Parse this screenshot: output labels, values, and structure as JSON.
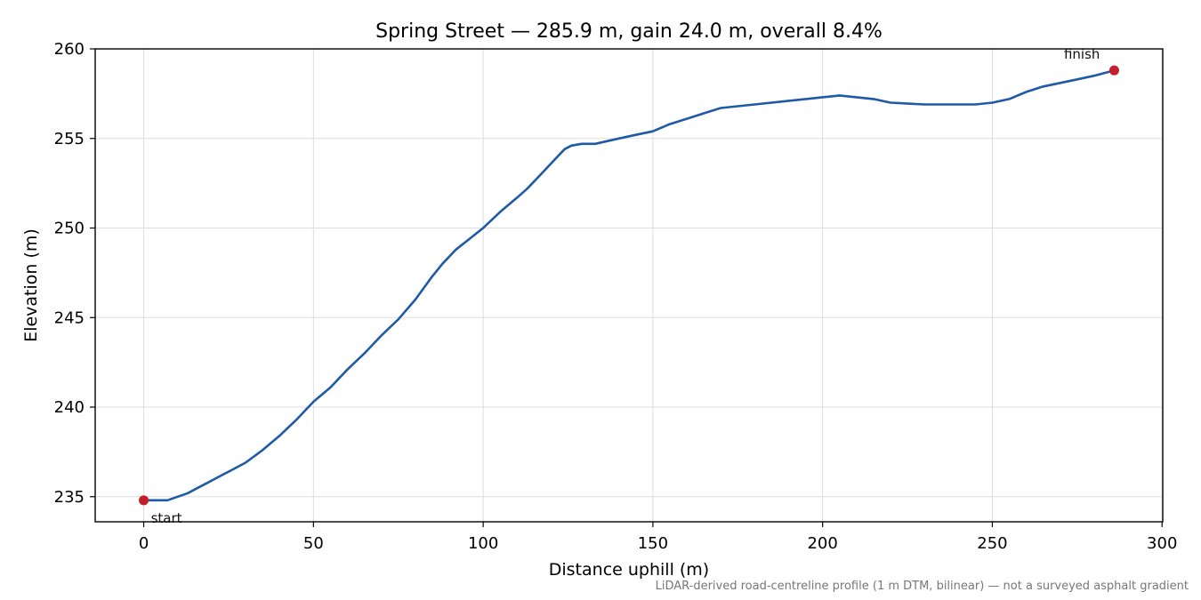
{
  "chart_data": {
    "type": "line",
    "title": "Spring Street — 285.9 m, gain 24.0 m, overall 8.4%",
    "xlabel": "Distance uphill (m)",
    "ylabel": "Elevation (m)",
    "xlim": [
      -14.3,
      300.2
    ],
    "ylim": [
      233.6,
      260.0
    ],
    "xticks": [
      0,
      50,
      100,
      150,
      200,
      250,
      300
    ],
    "yticks": [
      235,
      240,
      245,
      250,
      255,
      260
    ],
    "grid": true,
    "series": [
      {
        "color": "#1f5aa6",
        "points": [
          [
            0,
            234.8
          ],
          [
            5,
            234.8
          ],
          [
            7,
            234.8
          ],
          [
            10,
            235.0
          ],
          [
            13,
            235.2
          ],
          [
            16,
            235.5
          ],
          [
            19,
            235.8
          ],
          [
            22,
            236.1
          ],
          [
            26,
            236.5
          ],
          [
            30,
            236.9
          ],
          [
            35,
            237.6
          ],
          [
            40,
            238.4
          ],
          [
            45,
            239.3
          ],
          [
            50,
            240.3
          ],
          [
            55,
            241.1
          ],
          [
            60,
            242.1
          ],
          [
            65,
            243.0
          ],
          [
            70,
            244.0
          ],
          [
            75,
            244.9
          ],
          [
            80,
            246.0
          ],
          [
            85,
            247.3
          ],
          [
            88,
            248.0
          ],
          [
            92,
            248.8
          ],
          [
            96,
            249.4
          ],
          [
            100,
            250.0
          ],
          [
            105,
            250.9
          ],
          [
            110,
            251.7
          ],
          [
            113,
            252.2
          ],
          [
            117,
            253.0
          ],
          [
            121,
            253.8
          ],
          [
            124,
            254.4
          ],
          [
            126,
            254.6
          ],
          [
            129,
            254.7
          ],
          [
            133,
            254.7
          ],
          [
            140,
            255.0
          ],
          [
            145,
            255.2
          ],
          [
            150,
            255.4
          ],
          [
            155,
            255.8
          ],
          [
            160,
            256.1
          ],
          [
            165,
            256.4
          ],
          [
            170,
            256.7
          ],
          [
            175,
            256.8
          ],
          [
            180,
            256.9
          ],
          [
            190,
            257.1
          ],
          [
            200,
            257.3
          ],
          [
            205,
            257.4
          ],
          [
            210,
            257.3
          ],
          [
            215,
            257.2
          ],
          [
            220,
            257.0
          ],
          [
            230,
            256.9
          ],
          [
            235,
            256.9
          ],
          [
            240,
            256.9
          ],
          [
            245,
            256.9
          ],
          [
            250,
            257.0
          ],
          [
            255,
            257.2
          ],
          [
            260,
            257.6
          ],
          [
            265,
            257.9
          ],
          [
            270,
            258.1
          ],
          [
            275,
            258.3
          ],
          [
            280,
            258.5
          ],
          [
            285.9,
            258.8
          ]
        ]
      }
    ],
    "markers": [
      {
        "x": 0,
        "y": 234.8,
        "label": "start",
        "color": "#c41e2a"
      },
      {
        "x": 285.9,
        "y": 258.8,
        "label": "finish",
        "color": "#c41e2a"
      }
    ],
    "footnote": "LiDAR-derived road-centreline profile (1 m DTM, bilinear) — not a surveyed asphalt gradient"
  }
}
